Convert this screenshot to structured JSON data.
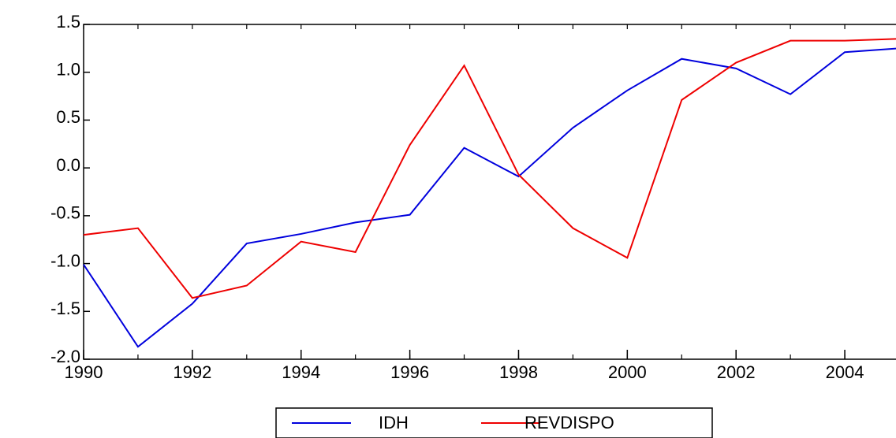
{
  "chart_data": {
    "type": "line",
    "x": [
      1990,
      1991,
      1992,
      1993,
      1994,
      1995,
      1996,
      1997,
      1998,
      1999,
      2000,
      2001,
      2002,
      2003,
      2004,
      2005
    ],
    "series": [
      {
        "name": "IDH",
        "color": "#0000dd",
        "values": [
          -1.01,
          -1.87,
          -1.42,
          -0.79,
          -0.69,
          -0.57,
          -0.49,
          0.21,
          -0.09,
          0.42,
          0.81,
          1.14,
          1.04,
          0.77,
          1.21,
          1.25
        ]
      },
      {
        "name": "REVDISPO",
        "color": "#ee0000",
        "values": [
          -0.7,
          -0.63,
          -1.36,
          -1.23,
          -0.77,
          -0.88,
          0.24,
          1.07,
          -0.07,
          -0.63,
          -0.94,
          0.71,
          1.1,
          1.33,
          1.33,
          1.35
        ]
      }
    ],
    "xlim": [
      1990,
      2005
    ],
    "xticks": [
      1990,
      1992,
      1994,
      1996,
      1998,
      2000,
      2002,
      2004
    ],
    "ylim": [
      -2,
      1.5
    ],
    "yticks": [
      {
        "value": -2,
        "label": "-2.0"
      },
      {
        "value": -1.5,
        "label": "-1.5"
      },
      {
        "value": -1,
        "label": "-1.0"
      },
      {
        "value": -0.5,
        "label": "-0.5"
      },
      {
        "value": 0,
        "label": "0.0"
      },
      {
        "value": 0.5,
        "label": "0.5"
      },
      {
        "value": 1,
        "label": "1.0"
      },
      {
        "value": 1.5,
        "label": "1.5"
      }
    ],
    "legend": "bottom"
  }
}
